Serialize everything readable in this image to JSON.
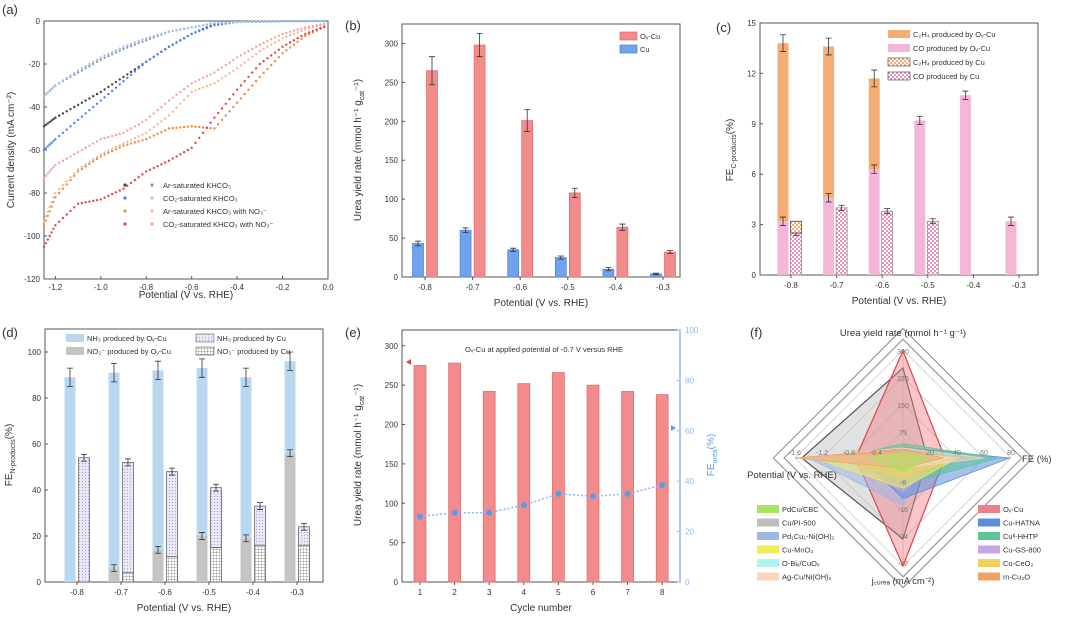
{
  "chart_data": [
    {
      "panel": "(a)",
      "type": "scatter",
      "xlabel": "Potential (V vs. RHE)",
      "ylabel": "Current density (mA cm⁻²)",
      "xlim": [
        -1.25,
        0
      ],
      "ylim": [
        -120,
        0
      ],
      "xticks": [
        "-1.2",
        "-1.0",
        "-0.8",
        "-0.6",
        "-0.4",
        "-0.2",
        "0.0"
      ],
      "xtick_values": [
        -1.2,
        -1.0,
        -0.8,
        -0.6,
        -0.4,
        -0.2,
        0.0
      ],
      "yticks": [
        0,
        -20,
        -40,
        -60,
        -80,
        -100,
        -120
      ],
      "x": [
        -1.25,
        -1.2,
        -1.1,
        -1.0,
        -0.9,
        -0.8,
        -0.7,
        -0.6,
        -0.5,
        -0.4,
        -0.3,
        -0.2,
        -0.1,
        0
      ],
      "series": [
        {
          "name": "Ar-saturated KHCO₃",
          "colors": [
            "#444444",
            "#999999"
          ],
          "branches": [
            [
              -49,
              -45,
              -39,
              -33,
              -26,
              -19,
              -12,
              -6,
              -1.5,
              -0.5,
              -0.3,
              -0.2,
              -0.1,
              0
            ],
            [
              -35,
              -30,
              -24,
              -18,
              -13,
              -9,
              -5,
              -3,
              -1,
              -0.5,
              -0.3,
              -0.2,
              -0.1,
              0
            ]
          ]
        },
        {
          "name": "CO₂-saturated KHCO₃",
          "colors": [
            "#4a86e8",
            "#9ec3f5"
          ],
          "branches": [
            [
              -60,
              -55,
              -46,
              -37,
              -28,
              -19,
              -12,
              -6,
              -2,
              -0.5,
              -0.3,
              -0.2,
              -0.1,
              0
            ],
            [
              -35,
              -30,
              -23,
              -17,
              -12,
              -8,
              -5,
              -3,
              -1,
              -0.5,
              -0.3,
              -0.2,
              -0.1,
              0
            ]
          ]
        },
        {
          "name": "Ar-saturated KHCO₃ with NO₃⁻",
          "colors": [
            "#f08a3c",
            "#f7b98a"
          ],
          "branches": [
            [
              -95,
              -82,
              -70,
              -63,
              -58,
              -55,
              -50,
              -49,
              -50,
              -38,
              -26,
              -15,
              -7,
              -2
            ],
            [
              -93,
              -80,
              -69,
              -62,
              -57,
              -52,
              -44,
              -33,
              -29,
              -22,
              -14,
              -8,
              -4,
              -1
            ]
          ]
        },
        {
          "name": "CO₂-saturated KHCO₃ with NO₃⁻",
          "colors": [
            "#e8434b",
            "#f5a0a8"
          ],
          "branches": [
            [
              -105,
              -95,
              -85,
              -83,
              -78,
              -70,
              -65,
              -59,
              -45,
              -32,
              -20,
              -12,
              -6,
              -2
            ],
            [
              -73,
              -67,
              -61,
              -55,
              -52,
              -46,
              -37,
              -29,
              -24,
              -17,
              -11,
              -6,
              -3,
              -1
            ]
          ]
        }
      ]
    },
    {
      "panel": "(b)",
      "type": "bar",
      "xlabel": "Potential (V vs. RHE)",
      "ylabel": {
        "main": "Urea yield rate (mmol h⁻¹ g",
        "sub": "cat",
        "tail": "⁻¹)"
      },
      "ylim": [
        0,
        325
      ],
      "categories": [
        "-0.8",
        "-0.7",
        "-0.6",
        "-0.5",
        "-0.4",
        "-0.3"
      ],
      "yticks": [
        0,
        50,
        100,
        150,
        200,
        250,
        300
      ],
      "series": [
        {
          "name": "Oᵥ-Cu",
          "color": "#f28b8b",
          "values": [
            265,
            298,
            201,
            108,
            64,
            32
          ],
          "errors": [
            18,
            15,
            14,
            6,
            4,
            2
          ]
        },
        {
          "name": "Cu",
          "color": "#6fa3ec",
          "values": [
            43,
            60,
            35,
            25,
            10,
            4
          ],
          "errors": [
            3,
            3,
            2,
            2,
            2,
            1
          ]
        }
      ]
    },
    {
      "panel": "(c)",
      "type": "bar",
      "xlabel": "Potential (V vs. RHE)",
      "ylabel": {
        "main": "FE",
        "sub": "C-products",
        "tail": " (%)"
      },
      "ylim": [
        0,
        15
      ],
      "categories": [
        "-0.8",
        "-0.7",
        "-0.6",
        "-0.5",
        "-0.4",
        "-0.3"
      ],
      "yticks": [
        0,
        3,
        6,
        9,
        12,
        15
      ],
      "series": [
        {
          "name": "C₂H₄ produced by Oᵥ-Cu",
          "color": "#f5ad73",
          "values": [
            10.6,
            9.0,
            5.4,
            0,
            0,
            0
          ],
          "stack": "Ov-Cu"
        },
        {
          "name": "CO produced by Oᵥ-Cu",
          "color": "#f3b6d6",
          "values": [
            3.2,
            4.6,
            6.3,
            9.2,
            10.7,
            3.2
          ],
          "stack": "Ov-Cu"
        },
        {
          "name": "C₂H₄ produced by Cu",
          "color": "#f5ad73",
          "values": [
            0.7,
            0,
            0,
            0,
            0,
            0
          ],
          "stack": "Cu"
        },
        {
          "name": "CO produced by Cu",
          "color": "#f3b6d6",
          "values": [
            2.5,
            4.0,
            3.8,
            3.2,
            0,
            0
          ],
          "stack": "Cu"
        }
      ]
    },
    {
      "panel": "(d)",
      "type": "bar",
      "xlabel": "Potential (V vs. RHE)",
      "ylabel": {
        "main": "FE",
        "sub": "N-products",
        "tail": " (%)"
      },
      "ylim": [
        0,
        110
      ],
      "categories": [
        "-0.8",
        "-0.7",
        "-0.6",
        "-0.5",
        "-0.4",
        "-0.3"
      ],
      "yticks": [
        0,
        20,
        40,
        60,
        80,
        100
      ],
      "series": [
        {
          "name": "NH₃ produced by Oᵥ-Cu",
          "color": "#b9d7f0",
          "values": [
            89,
            85,
            78,
            73,
            70,
            40
          ],
          "stack": "Ov-Cu"
        },
        {
          "name": "NH₃ produced by Cu",
          "color": "#d9d5f0",
          "values": [
            54,
            48,
            37,
            26,
            17,
            8
          ],
          "stack": "Cu"
        },
        {
          "name": "NO₂⁻ produced by Oᵥ-Cu",
          "color": "#c4c4c4",
          "values": [
            0,
            6,
            14,
            20,
            19,
            56
          ],
          "stack": "Ov-Cu"
        },
        {
          "name": "NO₂⁻ produced by Cu",
          "color": "#ffffff",
          "values": [
            0,
            4,
            11,
            15,
            16,
            16
          ],
          "stack": "Cu"
        }
      ]
    },
    {
      "panel": "(e)",
      "type": "bar",
      "xlabel": "Cycle number",
      "ylabel": {
        "main": "Urea yield rate (mmol h⁻¹ g",
        "sub": "cat",
        "tail": "⁻¹)"
      },
      "ylabel_right": {
        "main": "FE",
        "sub": "urea",
        "tail": " (%)"
      },
      "annotation": "Oᵥ-Cu at applied potential of -0.7 V versus RHE",
      "ylim": [
        0,
        320
      ],
      "ylim_right": [
        0,
        100
      ],
      "categories": [
        "1",
        "2",
        "3",
        "4",
        "5",
        "6",
        "7",
        "8"
      ],
      "yticks": [
        0,
        50,
        100,
        150,
        200,
        250,
        300
      ],
      "yticks_right": [
        0,
        20,
        40,
        60,
        80,
        100
      ],
      "series": [
        {
          "name": "Urea yield rate",
          "axis": "left",
          "color": "#f28b8b",
          "values": [
            275,
            278,
            242,
            252,
            266,
            250,
            242,
            238
          ]
        },
        {
          "name": "FE urea",
          "axis": "right",
          "color": "#5b9be8",
          "values": [
            26,
            27.5,
            27.5,
            30.5,
            35,
            34,
            35,
            38.5
          ]
        }
      ]
    },
    {
      "panel": "(f)",
      "type": "radar",
      "axes": [
        {
          "label": "Urea yield rate (mmol h⁻¹ g⁻¹)",
          "max": 300,
          "ticks": [
            75,
            150,
            225,
            300
          ]
        },
        {
          "label": "FE (%)",
          "max": 80,
          "ticks": [
            20,
            40,
            60,
            80
          ]
        },
        {
          "label": "j꜀ᵤᵣₑₐ (mA cm⁻²)",
          "max": -32,
          "ticks": [
            -8,
            -16,
            -24,
            -32
          ]
        },
        {
          "label": "Potential (V vs. RHE)",
          "max": -1.6,
          "ticks": [
            -0.4,
            -0.8,
            -1.2,
            -1.6
          ]
        }
      ],
      "series": [
        {
          "name": "Cu/PI-500",
          "color": "#bdbdbd",
          "values": [
            250,
            18,
            -24,
            -1.5
          ]
        },
        {
          "name": "Oᵥ-Cu",
          "color": "#ef7f86",
          "values": [
            298,
            31,
            -32,
            -0.7
          ]
        },
        {
          "name": "Pd₁Cu₁-Ni(OH)₂",
          "color": "#9fb8e3",
          "values": [
            25,
            25,
            -14,
            -1.4
          ]
        },
        {
          "name": "Cu-HATNA",
          "color": "#5b8fdc",
          "values": [
            30,
            79,
            -12,
            -0.6
          ]
        },
        {
          "name": "Cuᴵᴵ-HHTP",
          "color": "#5cc497",
          "values": [
            40,
            70,
            -8,
            -0.9
          ]
        },
        {
          "name": "Cu-GS-800",
          "color": "#c9a3ea",
          "values": [
            20,
            28,
            -10,
            -0.9
          ]
        },
        {
          "name": "Cu-MnO₂",
          "color": "#f2ec5c",
          "values": [
            12,
            40,
            -9,
            -1.3
          ]
        },
        {
          "name": "Cu-CeO₂",
          "color": "#f2cf5c",
          "values": [
            15,
            42,
            -6,
            -1.0
          ]
        },
        {
          "name": "O-Biₓ/CuOₓ",
          "color": "#b3f0f0",
          "values": [
            10,
            35,
            -3,
            -1.5
          ]
        },
        {
          "name": "Ag-Cu/Ni(OH)₂",
          "color": "#f8d6bf",
          "values": [
            28,
            60,
            -3,
            -1.55
          ]
        },
        {
          "name": "m-Cu₂O",
          "color": "#f2a25e",
          "values": [
            25,
            30,
            -3,
            -1.6
          ]
        },
        {
          "name": "PdCu/CBC",
          "color": "#a6e35e",
          "values": [
            15,
            20,
            -4,
            -0.5
          ]
        }
      ],
      "legend_left": [
        "PdCu/CBC",
        "Cu/PI-500",
        "Pd₁Cu₁-Ni(OH)₂",
        "Cu-MnO₂",
        "O-Biₓ/CuOₓ",
        "Ag-Cu/Ni(OH)₂"
      ],
      "legend_right": [
        "Oᵥ-Cu",
        "Cu-HATNA",
        "Cuᴵᴵ-HHTP",
        "Cu-GS-800",
        "Cu-CeO₂",
        "m-Cu₂O"
      ]
    }
  ]
}
